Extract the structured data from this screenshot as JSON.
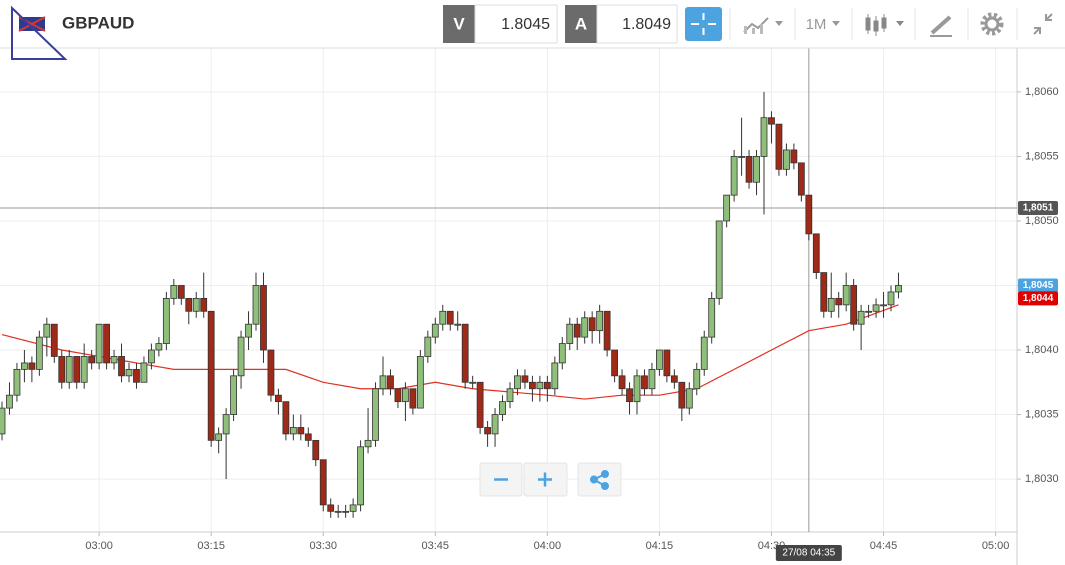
{
  "toolbar": {
    "symbol": "GBPAUD",
    "bid_label": "V",
    "bid": 1.8045,
    "ask_label": "A",
    "ask": 1.8049,
    "interval": "1M"
  },
  "chart_data": {
    "type": "candlestick",
    "up_color": "#8fbf7a",
    "down_color": "#9e2a17",
    "grid": true,
    "x": [
      "02:47",
      "02:48",
      "02:49",
      "02:50",
      "02:51",
      "02:52",
      "02:53",
      "02:54",
      "02:55",
      "02:56",
      "02:57",
      "02:58",
      "02:59",
      "03:00",
      "03:01",
      "03:02",
      "03:03",
      "03:04",
      "03:05",
      "03:06",
      "03:07",
      "03:08",
      "03:09",
      "03:10",
      "03:11",
      "03:12",
      "03:13",
      "03:14",
      "03:15",
      "03:16",
      "03:17",
      "03:18",
      "03:19",
      "03:20",
      "03:21",
      "03:22",
      "03:23",
      "03:24",
      "03:25",
      "03:26",
      "03:27",
      "03:28",
      "03:29",
      "03:30",
      "03:31",
      "03:32",
      "03:33",
      "03:34",
      "03:35",
      "03:36",
      "03:37",
      "03:38",
      "03:39",
      "03:40",
      "03:41",
      "03:42",
      "03:43",
      "03:44",
      "03:45",
      "03:46",
      "03:47",
      "03:48",
      "03:49",
      "03:50",
      "03:51",
      "03:52",
      "03:53",
      "03:54",
      "03:55",
      "03:56",
      "03:57",
      "03:58",
      "03:59",
      "04:00",
      "04:01",
      "04:02",
      "04:03",
      "04:04",
      "04:05",
      "04:06",
      "04:07",
      "04:08",
      "04:09",
      "04:10",
      "04:11",
      "04:12",
      "04:13",
      "04:14",
      "04:15",
      "04:16",
      "04:17",
      "04:18",
      "04:19",
      "04:20",
      "04:21",
      "04:22",
      "04:23",
      "04:24",
      "04:25",
      "04:26",
      "04:27",
      "04:28",
      "04:29",
      "04:30",
      "04:31",
      "04:32",
      "04:33",
      "04:34",
      "04:35",
      "04:36",
      "04:37",
      "04:38",
      "04:39",
      "04:40",
      "04:41",
      "04:42",
      "04:43",
      "04:44",
      "04:45",
      "04:46",
      "04:47"
    ],
    "ohlc": [
      [
        1.80335,
        1.8036,
        1.8033,
        1.80355
      ],
      [
        1.80355,
        1.80375,
        1.8035,
        1.80365
      ],
      [
        1.80365,
        1.8039,
        1.8036,
        1.80385
      ],
      [
        1.80385,
        1.804,
        1.80375,
        1.8039
      ],
      [
        1.8039,
        1.80395,
        1.80375,
        1.80385
      ],
      [
        1.80385,
        1.80415,
        1.8038,
        1.8041
      ],
      [
        1.8041,
        1.80425,
        1.80395,
        1.8042
      ],
      [
        1.8042,
        1.8042,
        1.8039,
        1.80395
      ],
      [
        1.80395,
        1.804,
        1.8037,
        1.80375
      ],
      [
        1.80375,
        1.804,
        1.8037,
        1.80395
      ],
      [
        1.80395,
        1.80395,
        1.8037,
        1.80375
      ],
      [
        1.80375,
        1.80405,
        1.8037,
        1.80395
      ],
      [
        1.80395,
        1.804,
        1.80385,
        1.8039
      ],
      [
        1.8039,
        1.8042,
        1.80385,
        1.8042
      ],
      [
        1.8042,
        1.8042,
        1.80385,
        1.8039
      ],
      [
        1.8039,
        1.804,
        1.80385,
        1.80395
      ],
      [
        1.80395,
        1.80405,
        1.80375,
        1.8038
      ],
      [
        1.8038,
        1.8039,
        1.80375,
        1.80385
      ],
      [
        1.80385,
        1.8039,
        1.8037,
        1.80375
      ],
      [
        1.80375,
        1.80395,
        1.80375,
        1.8039
      ],
      [
        1.8039,
        1.80405,
        1.80385,
        1.804
      ],
      [
        1.804,
        1.8041,
        1.80395,
        1.80405
      ],
      [
        1.80405,
        1.80445,
        1.804,
        1.8044
      ],
      [
        1.8044,
        1.80455,
        1.80435,
        1.8045
      ],
      [
        1.8045,
        1.8045,
        1.80435,
        1.8044
      ],
      [
        1.8044,
        1.8044,
        1.8042,
        1.8043
      ],
      [
        1.8043,
        1.80445,
        1.80425,
        1.8044
      ],
      [
        1.8044,
        1.8046,
        1.80425,
        1.8043
      ],
      [
        1.8043,
        1.8043,
        1.80325,
        1.8033
      ],
      [
        1.8033,
        1.8034,
        1.8032,
        1.80335
      ],
      [
        1.80335,
        1.80355,
        1.803,
        1.8035
      ],
      [
        1.8035,
        1.80385,
        1.80345,
        1.8038
      ],
      [
        1.8038,
        1.80415,
        1.8037,
        1.8041
      ],
      [
        1.8041,
        1.8043,
        1.804,
        1.8042
      ],
      [
        1.8042,
        1.8046,
        1.80415,
        1.8045
      ],
      [
        1.8045,
        1.8046,
        1.8039,
        1.804
      ],
      [
        1.804,
        1.804,
        1.8036,
        1.80365
      ],
      [
        1.80365,
        1.8037,
        1.8035,
        1.8036
      ],
      [
        1.8036,
        1.8036,
        1.8033,
        1.80335
      ],
      [
        1.80335,
        1.8035,
        1.8033,
        1.8034
      ],
      [
        1.8034,
        1.8035,
        1.8033,
        1.80335
      ],
      [
        1.80335,
        1.8034,
        1.80325,
        1.8033
      ],
      [
        1.8033,
        1.8033,
        1.8031,
        1.80315
      ],
      [
        1.80315,
        1.80315,
        1.80275,
        1.8028
      ],
      [
        1.8028,
        1.80285,
        1.8027,
        1.80275
      ],
      [
        1.80275,
        1.8028,
        1.8027,
        1.80275
      ],
      [
        1.80275,
        1.8028,
        1.8027,
        1.80275
      ],
      [
        1.80275,
        1.80285,
        1.8027,
        1.8028
      ],
      [
        1.8028,
        1.8033,
        1.80275,
        1.80325
      ],
      [
        1.80325,
        1.80355,
        1.8032,
        1.8033
      ],
      [
        1.8033,
        1.80375,
        1.80325,
        1.8037
      ],
      [
        1.8037,
        1.80395,
        1.80365,
        1.8038
      ],
      [
        1.8038,
        1.80385,
        1.80365,
        1.8037
      ],
      [
        1.8037,
        1.8037,
        1.80355,
        1.8036
      ],
      [
        1.8036,
        1.80375,
        1.80345,
        1.8037
      ],
      [
        1.8037,
        1.8037,
        1.8035,
        1.80355
      ],
      [
        1.80355,
        1.804,
        1.80355,
        1.80395
      ],
      [
        1.80395,
        1.80415,
        1.8039,
        1.8041
      ],
      [
        1.8041,
        1.80425,
        1.80405,
        1.8042
      ],
      [
        1.8042,
        1.80435,
        1.80415,
        1.8043
      ],
      [
        1.8043,
        1.8043,
        1.80415,
        1.8042
      ],
      [
        1.8042,
        1.8043,
        1.80415,
        1.8042
      ],
      [
        1.8042,
        1.8042,
        1.8037,
        1.80375
      ],
      [
        1.80375,
        1.8038,
        1.8037,
        1.80375
      ],
      [
        1.80375,
        1.80375,
        1.80335,
        1.8034
      ],
      [
        1.8034,
        1.80345,
        1.80325,
        1.80335
      ],
      [
        1.80335,
        1.80355,
        1.80325,
        1.8035
      ],
      [
        1.8035,
        1.80365,
        1.80345,
        1.8036
      ],
      [
        1.8036,
        1.80375,
        1.80355,
        1.8037
      ],
      [
        1.8037,
        1.80385,
        1.80365,
        1.8038
      ],
      [
        1.8038,
        1.80385,
        1.8037,
        1.80375
      ],
      [
        1.80375,
        1.8038,
        1.8036,
        1.8037
      ],
      [
        1.8037,
        1.8038,
        1.8036,
        1.80375
      ],
      [
        1.80375,
        1.8038,
        1.8036,
        1.8037
      ],
      [
        1.8037,
        1.80395,
        1.80365,
        1.8039
      ],
      [
        1.8039,
        1.8041,
        1.80385,
        1.80405
      ],
      [
        1.80405,
        1.80425,
        1.804,
        1.8042
      ],
      [
        1.8042,
        1.80425,
        1.804,
        1.8041
      ],
      [
        1.8041,
        1.8043,
        1.80405,
        1.80425
      ],
      [
        1.80425,
        1.8043,
        1.80405,
        1.80415
      ],
      [
        1.80415,
        1.80435,
        1.80405,
        1.8043
      ],
      [
        1.8043,
        1.8043,
        1.80395,
        1.804
      ],
      [
        1.804,
        1.804,
        1.80375,
        1.8038
      ],
      [
        1.8038,
        1.80385,
        1.80365,
        1.8037
      ],
      [
        1.8037,
        1.80375,
        1.8035,
        1.8036
      ],
      [
        1.8036,
        1.80385,
        1.8035,
        1.8038
      ],
      [
        1.8038,
        1.80385,
        1.80365,
        1.8037
      ],
      [
        1.8037,
        1.8039,
        1.80365,
        1.80385
      ],
      [
        1.80385,
        1.804,
        1.8038,
        1.804
      ],
      [
        1.804,
        1.804,
        1.80375,
        1.8038
      ],
      [
        1.8038,
        1.80385,
        1.8037,
        1.80375
      ],
      [
        1.80375,
        1.80375,
        1.80345,
        1.80355
      ],
      [
        1.80355,
        1.80375,
        1.8035,
        1.8037
      ],
      [
        1.8037,
        1.8039,
        1.80365,
        1.80385
      ],
      [
        1.80385,
        1.80415,
        1.8038,
        1.8041
      ],
      [
        1.8041,
        1.80445,
        1.80405,
        1.8044
      ],
      [
        1.8044,
        1.805,
        1.80435,
        1.805
      ],
      [
        1.805,
        1.8052,
        1.80495,
        1.8052
      ],
      [
        1.8052,
        1.80555,
        1.80515,
        1.8055
      ],
      [
        1.8055,
        1.8058,
        1.80535,
        1.8055
      ],
      [
        1.8055,
        1.80555,
        1.80525,
        1.8053
      ],
      [
        1.8053,
        1.80555,
        1.8052,
        1.8055
      ],
      [
        1.8055,
        1.806,
        1.80505,
        1.8058
      ],
      [
        1.8058,
        1.80585,
        1.8056,
        1.80575
      ],
      [
        1.80575,
        1.80575,
        1.80535,
        1.8054
      ],
      [
        1.8054,
        1.8056,
        1.80535,
        1.80555
      ],
      [
        1.80555,
        1.8056,
        1.8054,
        1.80545
      ],
      [
        1.80545,
        1.80545,
        1.80515,
        1.8052
      ],
      [
        1.8052,
        1.8052,
        1.80485,
        1.8049
      ],
      [
        1.8049,
        1.8049,
        1.80455,
        1.8046
      ],
      [
        1.8046,
        1.8046,
        1.80425,
        1.8043
      ],
      [
        1.8043,
        1.8046,
        1.80425,
        1.8044
      ],
      [
        1.8044,
        1.80445,
        1.80425,
        1.80435
      ],
      [
        1.80435,
        1.8046,
        1.8043,
        1.8045
      ],
      [
        1.8045,
        1.80455,
        1.80415,
        1.8042
      ],
      [
        1.8042,
        1.80435,
        1.804,
        1.8043
      ],
      [
        1.8043,
        1.80435,
        1.80425,
        1.8043
      ],
      [
        1.8043,
        1.8044,
        1.80425,
        1.80435
      ],
      [
        1.80435,
        1.80445,
        1.80425,
        1.80435
      ],
      [
        1.80435,
        1.8045,
        1.8043,
        1.80445
      ],
      [
        1.80445,
        1.8046,
        1.8044,
        1.8045
      ]
    ],
    "moving_average": {
      "color": "#e03020",
      "x": [
        "02:47",
        "02:55",
        "03:00",
        "03:05",
        "03:10",
        "03:15",
        "03:20",
        "03:25",
        "03:30",
        "03:35",
        "03:40",
        "03:45",
        "03:50",
        "04:00",
        "04:05",
        "04:10",
        "04:15",
        "04:20",
        "04:25",
        "04:30",
        "04:35",
        "04:40",
        "04:47"
      ],
      "values": [
        1.80412,
        1.804,
        1.80395,
        1.8039,
        1.80385,
        1.80385,
        1.80385,
        1.80385,
        1.80375,
        1.8037,
        1.8037,
        1.80375,
        1.8037,
        1.80365,
        1.80362,
        1.80365,
        1.80365,
        1.8037,
        1.80385,
        1.804,
        1.80415,
        1.8042,
        1.80435
      ]
    },
    "xlim": [
      "02:47",
      "05:03"
    ],
    "xticks": [
      "03:00",
      "03:15",
      "03:30",
      "03:45",
      "04:00",
      "04:15",
      "04:30",
      "04:45",
      "05:00"
    ],
    "ylim": [
      1.80259,
      1.80634
    ],
    "yticks": [
      {
        "value": 1.803,
        "label": "1,8030"
      },
      {
        "value": 1.8035,
        "label": "1,8035"
      },
      {
        "value": 1.804,
        "label": "1,8040"
      },
      {
        "value": 1.8045,
        "label": "1,8045"
      },
      {
        "value": 1.805,
        "label": "1,8050"
      },
      {
        "value": 1.8055,
        "label": "1,8055"
      },
      {
        "value": 1.806,
        "label": "1,8060"
      }
    ],
    "crosshair": {
      "price": {
        "value": 1.8051,
        "label": "1,8051"
      },
      "time_label": "27/08 04:35"
    },
    "price_tags": [
      {
        "value": 1.8045,
        "label": "1,8045",
        "color": "#4da3e0"
      },
      {
        "value": 1.8044,
        "label": "1,8044",
        "color": "#e00000"
      }
    ]
  }
}
